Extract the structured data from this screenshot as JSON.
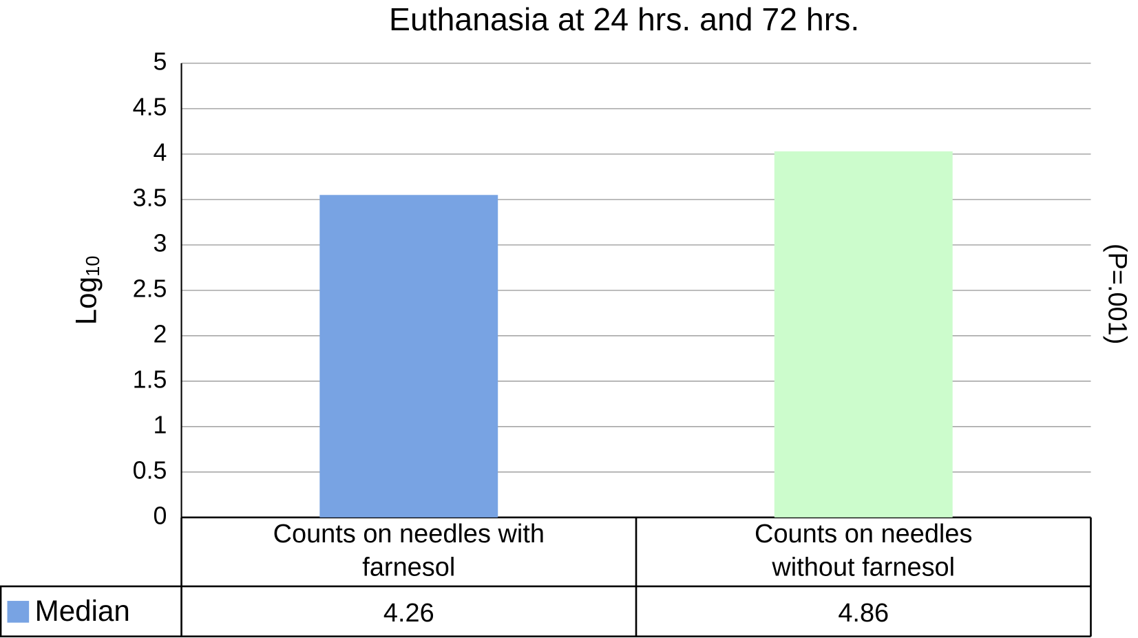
{
  "chart_data": {
    "type": "bar",
    "title": "Euthanasia at 24 hrs. and 72 hrs.",
    "y_label": "Log",
    "y_label_sub": "10",
    "annotation": "(P=.001)",
    "categories": [
      "Counts on needles with farnesol",
      "Counts on needles without farnesol"
    ],
    "series": [
      {
        "name": "Median",
        "color": "#78a3e3",
        "point_colors": [
          "#78a3e3",
          "#ccfccc"
        ],
        "values": [
          3.55,
          4.03
        ],
        "table_values": [
          "4.26",
          "4.86"
        ]
      }
    ],
    "ylim": [
      0,
      5
    ],
    "yticks": [
      0,
      0.5,
      1,
      1.5,
      2,
      2.5,
      3,
      3.5,
      4,
      4.5,
      5
    ],
    "grid": true
  }
}
